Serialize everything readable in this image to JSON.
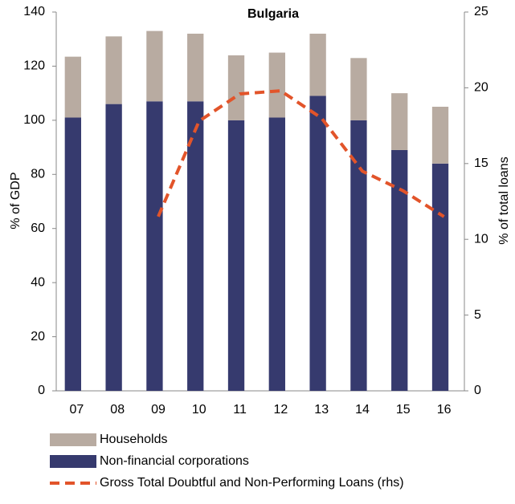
{
  "chart_data": {
    "type": "bar-line",
    "title": "Bulgaria",
    "y_label": "% of GDP",
    "y2_label": "% of total loans",
    "categories": [
      "07",
      "08",
      "09",
      "10",
      "11",
      "12",
      "13",
      "14",
      "15",
      "16"
    ],
    "series": [
      {
        "name": "Households",
        "color": "#b8aba1",
        "type": "bar",
        "values": [
          22.5,
          25,
          26,
          25,
          24,
          24,
          23,
          23,
          21,
          21
        ]
      },
      {
        "name": "Non-financial corporations",
        "color": "#363a6e",
        "type": "bar",
        "values": [
          101,
          106,
          107,
          107,
          100,
          101,
          109,
          100,
          89,
          84
        ]
      },
      {
        "name": "Gross Total Doubtful and Non-Performing Loans (rhs)",
        "color": "#e2542a",
        "type": "line",
        "axis": "y2",
        "values": [
          null,
          null,
          11.5,
          17.8,
          19.6,
          19.8,
          18.0,
          14.5,
          13.2,
          11.5
        ]
      }
    ],
    "ylim": [
      0,
      140
    ],
    "yticks": [
      0,
      20,
      40,
      60,
      80,
      100,
      120,
      140
    ],
    "y2lim": [
      0,
      25
    ],
    "y2ticks": [
      0,
      5,
      10,
      15,
      20,
      25
    ]
  }
}
